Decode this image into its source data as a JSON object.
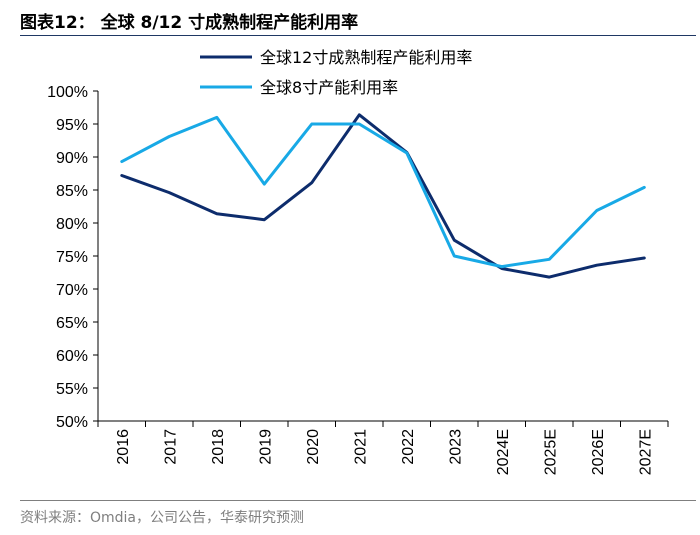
{
  "header": {
    "title": "图表12：  全球 8/12 寸成熟制程产能利用率"
  },
  "footer": {
    "source": "资料来源：Omdia，公司公告，华泰研究预测"
  },
  "chart_data": {
    "type": "line",
    "title": "全球 8/12 寸成熟制程产能利用率",
    "xlabel": "",
    "ylabel": "",
    "categories": [
      "2016",
      "2017",
      "2018",
      "2019",
      "2020",
      "2021",
      "2022",
      "2023",
      "2024E",
      "2025E",
      "2026E",
      "2027E"
    ],
    "ylim": [
      50,
      100
    ],
    "yticks": [
      50,
      55,
      60,
      65,
      70,
      75,
      80,
      85,
      90,
      95,
      100
    ],
    "ytick_labels": [
      "50%",
      "55%",
      "60%",
      "65%",
      "70%",
      "75%",
      "80%",
      "85%",
      "90%",
      "95%",
      "100%"
    ],
    "grid": false,
    "legend_position": "top",
    "series": [
      {
        "name": "全球12寸成熟制程产能利用率",
        "color": "#0d2c6c",
        "values": [
          87.2,
          84.6,
          81.4,
          80.5,
          86.1,
          96.4,
          90.7,
          77.4,
          73.1,
          71.8,
          73.6,
          74.7
        ]
      },
      {
        "name": "全球8寸产能利用率",
        "color": "#18a9e6",
        "values": [
          89.3,
          93.1,
          96.0,
          85.9,
          95.0,
          95.0,
          90.6,
          75.0,
          73.4,
          74.5,
          81.9,
          85.4
        ]
      }
    ]
  }
}
